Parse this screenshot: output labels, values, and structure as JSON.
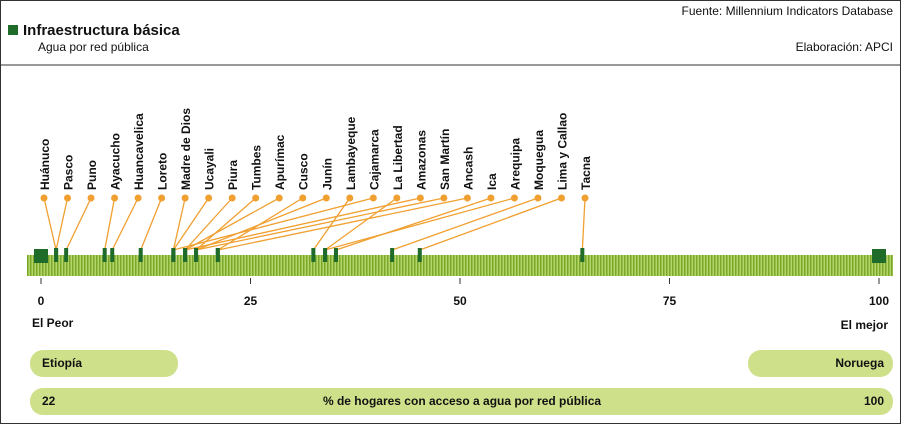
{
  "header": {
    "title": "Infraestructura básica",
    "subtitle": "Agua por red pública",
    "source": "Fuente: Millennium Indicators Database",
    "credit": "Elaboración: APCI"
  },
  "chart_data": {
    "type": "strip",
    "categories": [
      "Huánuco",
      "Pasco",
      "Puno",
      "Ayacucho",
      "Huancavelica",
      "Loreto",
      "Madre de Dios",
      "Ucayali",
      "Piura",
      "Tumbes",
      "Apurímac",
      "Cusco",
      "Junín",
      "Lambayeque",
      "Cajamarca",
      "La Libertad",
      "Amazonas",
      "San Martín",
      "Ancash",
      "Ica",
      "Arequipa",
      "Moquegua",
      "Lima y Callao",
      "Tacna"
    ],
    "values": [
      1.8,
      1.8,
      3.0,
      7.6,
      8.5,
      11.9,
      15.8,
      15.8,
      17.2,
      18.5,
      17.2,
      21.1,
      18.5,
      32.5,
      15.8,
      33.9,
      17.2,
      18.5,
      21.1,
      35.2,
      33.9,
      41.9,
      45.2,
      64.6
    ],
    "color": "#1f6b2a",
    "label_color": "#f0a030",
    "xlim": [
      0,
      100
    ],
    "xticks": [
      0,
      25,
      50,
      75,
      100
    ],
    "low_label": "El Peor",
    "high_label": "El mejor"
  },
  "footer": {
    "worst_country": "Etiopía",
    "best_country": "Noruega",
    "worst_value": "22",
    "best_value": "100",
    "description": "% de hogares con acceso a agua por red pública"
  }
}
